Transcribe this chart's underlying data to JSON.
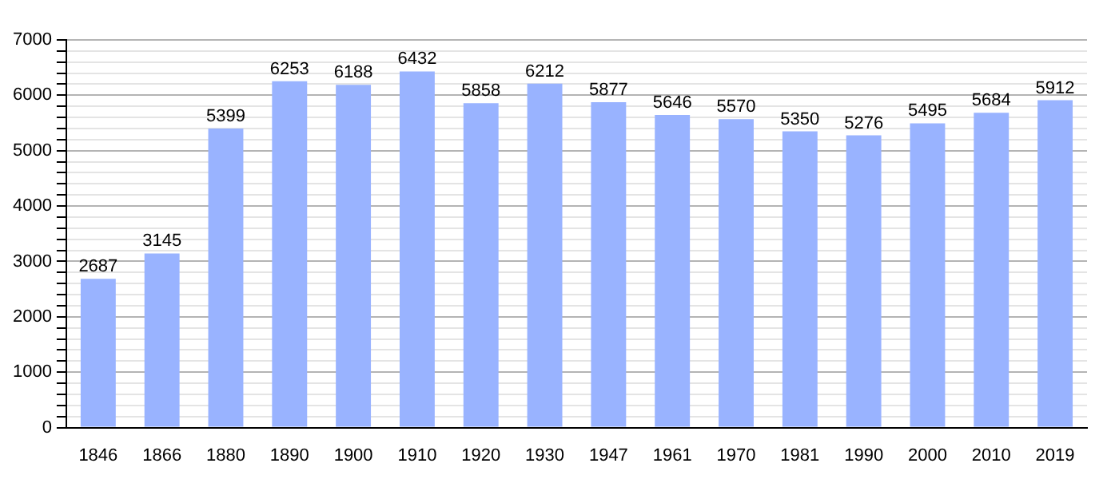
{
  "chart_data": {
    "type": "bar",
    "categories": [
      "1846",
      "1866",
      "1880",
      "1890",
      "1900",
      "1910",
      "1920",
      "1930",
      "1947",
      "1961",
      "1970",
      "1981",
      "1990",
      "2000",
      "2010",
      "2019"
    ],
    "values": [
      2687,
      3145,
      5399,
      6253,
      6188,
      6432,
      5858,
      6212,
      5877,
      5646,
      5570,
      5350,
      5276,
      5495,
      5684,
      5912
    ],
    "color": "#99b3ff",
    "data_labels": true,
    "grid": "y",
    "ylim": [
      0,
      7000
    ],
    "yticks": [
      0,
      {
        "value": 200,
        "label": null
      },
      {
        "value": 400,
        "label": null
      },
      {
        "value": 600,
        "label": null
      },
      {
        "value": 800,
        "label": null
      },
      1000,
      {
        "value": 1200,
        "label": null
      },
      {
        "value": 1400,
        "label": null
      },
      {
        "value": 1600,
        "label": null
      },
      {
        "value": 1800,
        "label": null
      },
      2000,
      {
        "value": 2200,
        "label": null
      },
      {
        "value": 2400,
        "label": null
      },
      {
        "value": 2600,
        "label": null
      },
      {
        "value": 2800,
        "label": null
      },
      3000,
      {
        "value": 3200,
        "label": null
      },
      {
        "value": 3400,
        "label": null
      },
      {
        "value": 3600,
        "label": null
      },
      {
        "value": 3800,
        "label": null
      },
      4000,
      {
        "value": 4200,
        "label": null
      },
      {
        "value": 4400,
        "label": null
      },
      {
        "value": 4600,
        "label": null
      },
      {
        "value": 4800,
        "label": null
      },
      5000,
      {
        "value": 5200,
        "label": null
      },
      {
        "value": 5400,
        "label": null
      },
      {
        "value": 5600,
        "label": null
      },
      {
        "value": 5800,
        "label": null
      },
      6000,
      {
        "value": 6200,
        "label": null
      },
      {
        "value": 6400,
        "label": null
      },
      {
        "value": 6600,
        "label": null
      },
      {
        "value": 6800,
        "label": null
      },
      7000
    ]
  }
}
